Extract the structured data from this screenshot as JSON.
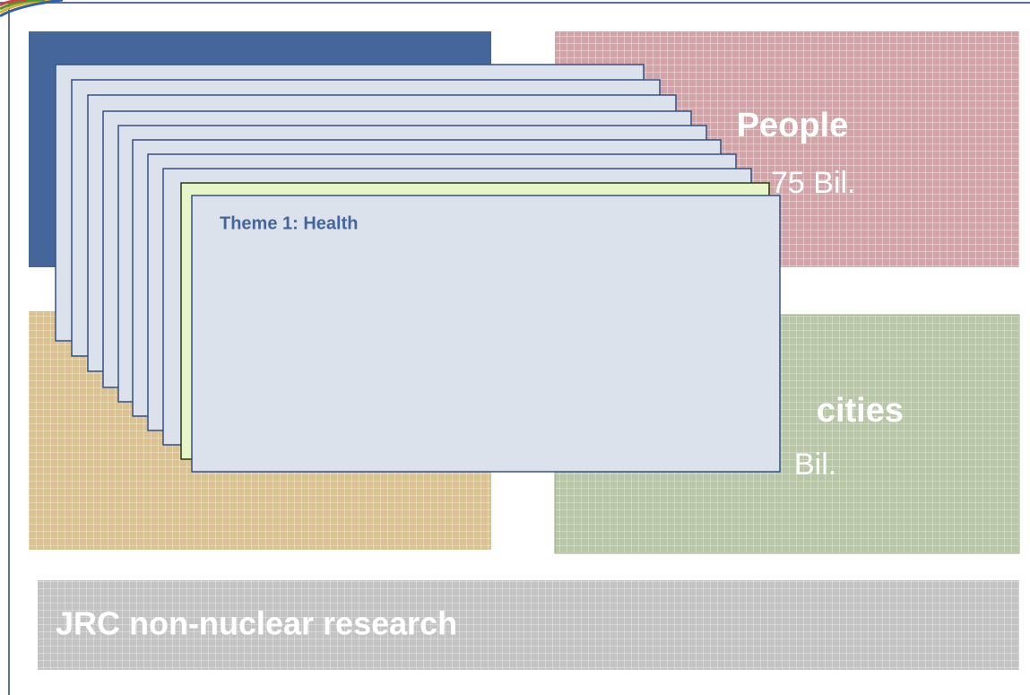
{
  "blocks": [
    {
      "title": "People",
      "amount": "75 Bil."
    },
    {
      "title": "cities",
      "amount": "Bil."
    }
  ],
  "bottom": {
    "title": "JRC non-nuclear research"
  },
  "card": {
    "title": "Theme 1: Health"
  }
}
